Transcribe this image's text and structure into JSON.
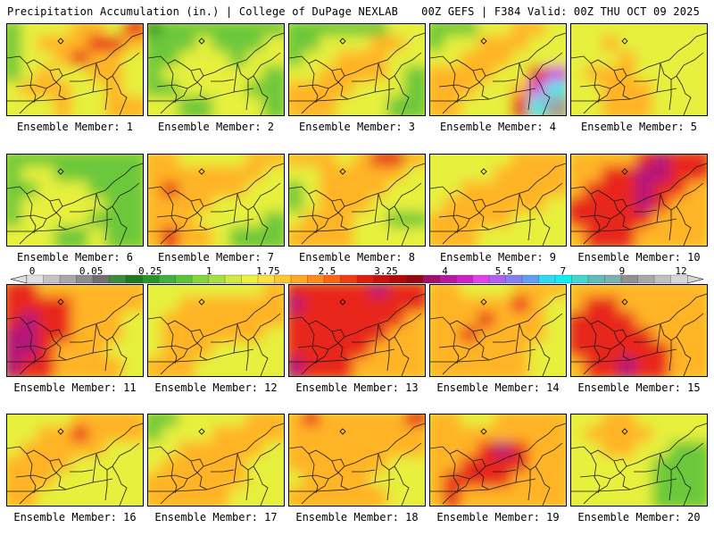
{
  "header": {
    "title": "Precipitation Accumulation (in.) | College of DuPage NEXLAB",
    "run_info": "00Z GEFS | F384 Valid: 00Z THU OCT 09 2025"
  },
  "colorbar": {
    "tick_labels": [
      "0",
      "0.05",
      "0.25",
      "1",
      "1.75",
      "2.5",
      "3.25",
      "4",
      "5.5",
      "7",
      "9",
      "12"
    ],
    "colors": [
      "#e0e0e0",
      "#c4c4c4",
      "#a8a8a8",
      "#8c8c8c",
      "#707070",
      "#3c8c3c",
      "#1e7a1e",
      "#2a962a",
      "#40b040",
      "#5cc43a",
      "#84d63a",
      "#a8e040",
      "#d0ec40",
      "#f2f23c",
      "#ffe03c",
      "#ffc82e",
      "#ffaa20",
      "#ff8c1a",
      "#ff6414",
      "#f03c10",
      "#e01e0e",
      "#c81010",
      "#b00a0a",
      "#960810",
      "#a0106a",
      "#b818a0",
      "#d020c8",
      "#e044e8",
      "#b060f0",
      "#8480f0",
      "#60a0f0",
      "#30d8f0",
      "#10f0f0",
      "#40d8d0",
      "#60bcb8",
      "#7cb0b0",
      "#909090",
      "#a8a8a8",
      "#c0c0c0",
      "#d8d8d8"
    ]
  },
  "panels": [
    {
      "label": "Ensemble Member: 1",
      "pattern": [
        [
          1,
          2,
          2,
          2,
          3,
          3,
          2,
          4
        ],
        [
          1,
          2,
          3,
          3,
          3,
          4,
          4,
          3
        ],
        [
          1,
          2,
          2,
          3,
          4,
          3,
          3,
          2
        ],
        [
          1,
          2,
          3,
          2,
          2,
          3,
          3,
          2
        ],
        [
          2,
          3,
          3,
          3,
          2,
          2,
          3,
          2
        ],
        [
          2,
          2,
          2,
          3,
          2,
          2,
          3,
          3
        ]
      ]
    },
    {
      "label": "Ensemble Member: 2",
      "pattern": [
        [
          0,
          1,
          1,
          1,
          1,
          1,
          1,
          1
        ],
        [
          1,
          1,
          1,
          2,
          1,
          1,
          1,
          2
        ],
        [
          1,
          1,
          2,
          2,
          2,
          1,
          2,
          2
        ],
        [
          1,
          2,
          2,
          2,
          2,
          2,
          2,
          1
        ],
        [
          1,
          1,
          2,
          2,
          2,
          2,
          1,
          1
        ],
        [
          2,
          2,
          1,
          1,
          2,
          2,
          2,
          1
        ]
      ]
    },
    {
      "label": "Ensemble Member: 3",
      "pattern": [
        [
          1,
          1,
          1,
          1,
          1,
          1,
          2,
          2
        ],
        [
          1,
          1,
          2,
          2,
          2,
          3,
          3,
          2
        ],
        [
          1,
          2,
          2,
          3,
          3,
          3,
          2,
          2
        ],
        [
          2,
          2,
          3,
          3,
          3,
          3,
          2,
          1
        ],
        [
          3,
          3,
          3,
          3,
          2,
          2,
          2,
          1
        ],
        [
          3,
          3,
          3,
          2,
          2,
          2,
          1,
          1
        ]
      ]
    },
    {
      "label": "Ensemble Member: 4",
      "pattern": [
        [
          1,
          1,
          1,
          2,
          2,
          3,
          3,
          2
        ],
        [
          1,
          2,
          2,
          3,
          3,
          3,
          2,
          2
        ],
        [
          2,
          2,
          3,
          3,
          3,
          2,
          2,
          2
        ],
        [
          3,
          3,
          3,
          3,
          2,
          2,
          4,
          6
        ],
        [
          3,
          3,
          3,
          2,
          2,
          3,
          6,
          7
        ],
        [
          3,
          3,
          2,
          2,
          2,
          4,
          7,
          8
        ]
      ]
    },
    {
      "label": "Ensemble Member: 5",
      "pattern": [
        [
          2,
          2,
          2,
          2,
          2,
          2,
          2,
          2
        ],
        [
          2,
          2,
          3,
          2,
          2,
          2,
          2,
          2
        ],
        [
          2,
          2,
          2,
          3,
          2,
          2,
          2,
          2
        ],
        [
          2,
          3,
          3,
          3,
          2,
          2,
          2,
          2
        ],
        [
          2,
          2,
          3,
          3,
          3,
          2,
          2,
          2
        ],
        [
          2,
          2,
          3,
          3,
          3,
          2,
          2,
          2
        ]
      ]
    },
    {
      "label": "Ensemble Member: 6",
      "pattern": [
        [
          1,
          1,
          1,
          1,
          1,
          1,
          1,
          1
        ],
        [
          1,
          2,
          2,
          1,
          1,
          1,
          1,
          1
        ],
        [
          1,
          1,
          2,
          2,
          2,
          1,
          1,
          1
        ],
        [
          1,
          2,
          2,
          2,
          2,
          2,
          1,
          1
        ],
        [
          1,
          2,
          2,
          2,
          2,
          1,
          1,
          1
        ],
        [
          2,
          2,
          2,
          1,
          1,
          2,
          1,
          1
        ]
      ]
    },
    {
      "label": "Ensemble Member: 7",
      "pattern": [
        [
          3,
          3,
          2,
          2,
          2,
          2,
          3,
          3
        ],
        [
          3,
          3,
          3,
          3,
          3,
          3,
          3,
          2
        ],
        [
          3,
          4,
          3,
          3,
          3,
          3,
          2,
          2
        ],
        [
          3,
          3,
          3,
          3,
          2,
          2,
          2,
          2
        ],
        [
          3,
          3,
          3,
          2,
          2,
          2,
          2,
          1
        ],
        [
          3,
          4,
          3,
          3,
          2,
          1,
          1,
          1
        ]
      ]
    },
    {
      "label": "Ensemble Member: 8",
      "pattern": [
        [
          3,
          3,
          3,
          2,
          3,
          4,
          4,
          3
        ],
        [
          2,
          2,
          3,
          3,
          3,
          3,
          3,
          2
        ],
        [
          1,
          2,
          3,
          3,
          3,
          3,
          2,
          2
        ],
        [
          1,
          2,
          3,
          3,
          3,
          2,
          2,
          2
        ],
        [
          2,
          3,
          3,
          3,
          2,
          2,
          1,
          1
        ],
        [
          3,
          3,
          3,
          3,
          2,
          2,
          2,
          2
        ]
      ]
    },
    {
      "label": "Ensemble Member: 9",
      "pattern": [
        [
          2,
          2,
          2,
          2,
          2,
          3,
          3,
          3
        ],
        [
          2,
          2,
          2,
          2,
          3,
          3,
          3,
          3
        ],
        [
          2,
          2,
          3,
          3,
          3,
          3,
          3,
          3
        ],
        [
          2,
          3,
          3,
          3,
          3,
          3,
          3,
          2
        ],
        [
          3,
          3,
          3,
          3,
          3,
          2,
          2,
          2
        ],
        [
          3,
          3,
          3,
          2,
          2,
          2,
          2,
          2
        ]
      ]
    },
    {
      "label": "Ensemble Member: 10",
      "pattern": [
        [
          3,
          3,
          3,
          3,
          4,
          5,
          4,
          4
        ],
        [
          3,
          3,
          4,
          4,
          5,
          5,
          4,
          4
        ],
        [
          3,
          4,
          4,
          4,
          5,
          4,
          4,
          3
        ],
        [
          4,
          4,
          4,
          4,
          5,
          4,
          3,
          3
        ],
        [
          4,
          4,
          4,
          4,
          4,
          3,
          3,
          3
        ],
        [
          3,
          4,
          4,
          4,
          3,
          3,
          3,
          3
        ]
      ]
    },
    {
      "label": "Ensemble Member: 11",
      "pattern": [
        [
          4,
          4,
          3,
          3,
          3,
          3,
          3,
          3
        ],
        [
          4,
          4,
          4,
          4,
          3,
          3,
          3,
          3
        ],
        [
          4,
          5,
          4,
          4,
          3,
          3,
          3,
          2
        ],
        [
          5,
          5,
          4,
          4,
          3,
          3,
          3,
          2
        ],
        [
          5,
          5,
          4,
          3,
          3,
          3,
          2,
          2
        ],
        [
          5,
          4,
          4,
          3,
          3,
          3,
          3,
          2
        ]
      ]
    },
    {
      "label": "Ensemble Member: 12",
      "pattern": [
        [
          2,
          2,
          2,
          2,
          2,
          2,
          2,
          3
        ],
        [
          2,
          2,
          3,
          3,
          3,
          3,
          3,
          3
        ],
        [
          2,
          3,
          3,
          3,
          3,
          3,
          3,
          3
        ],
        [
          2,
          3,
          3,
          3,
          3,
          3,
          3,
          2
        ],
        [
          2,
          3,
          3,
          3,
          2,
          2,
          2,
          2
        ],
        [
          3,
          3,
          3,
          2,
          2,
          2,
          2,
          2
        ]
      ]
    },
    {
      "label": "Ensemble Member: 13",
      "pattern": [
        [
          4,
          4,
          4,
          4,
          4,
          5,
          4,
          4
        ],
        [
          5,
          4,
          4,
          4,
          4,
          4,
          4,
          4
        ],
        [
          4,
          4,
          4,
          4,
          4,
          4,
          4,
          3
        ],
        [
          4,
          4,
          4,
          4,
          4,
          4,
          3,
          3
        ],
        [
          4,
          4,
          4,
          4,
          4,
          3,
          3,
          3
        ],
        [
          5,
          4,
          4,
          4,
          3,
          3,
          3,
          3
        ]
      ]
    },
    {
      "label": "Ensemble Member: 14",
      "pattern": [
        [
          3,
          3,
          2,
          2,
          2,
          3,
          3,
          3
        ],
        [
          3,
          3,
          3,
          3,
          3,
          4,
          3,
          2
        ],
        [
          3,
          3,
          3,
          4,
          3,
          3,
          3,
          2
        ],
        [
          3,
          3,
          4,
          3,
          3,
          3,
          3,
          2
        ],
        [
          3,
          3,
          3,
          3,
          3,
          3,
          2,
          2
        ],
        [
          3,
          3,
          3,
          3,
          3,
          3,
          2,
          2
        ]
      ]
    },
    {
      "label": "Ensemble Member: 15",
      "pattern": [
        [
          3,
          3,
          3,
          3,
          3,
          3,
          3,
          3
        ],
        [
          3,
          4,
          4,
          3,
          3,
          3,
          3,
          3
        ],
        [
          4,
          4,
          4,
          4,
          3,
          3,
          3,
          3
        ],
        [
          4,
          4,
          4,
          4,
          4,
          3,
          3,
          3
        ],
        [
          4,
          4,
          4,
          4,
          4,
          4,
          3,
          3
        ],
        [
          3,
          4,
          4,
          5,
          4,
          4,
          3,
          3
        ]
      ]
    },
    {
      "label": "Ensemble Member: 16",
      "pattern": [
        [
          2,
          2,
          2,
          2,
          3,
          3,
          3,
          3
        ],
        [
          2,
          2,
          3,
          3,
          4,
          3,
          3,
          3
        ],
        [
          2,
          3,
          3,
          3,
          3,
          3,
          2,
          2
        ],
        [
          3,
          3,
          3,
          3,
          2,
          2,
          2,
          2
        ],
        [
          3,
          3,
          3,
          2,
          2,
          2,
          2,
          2
        ],
        [
          3,
          3,
          2,
          2,
          2,
          2,
          2,
          2
        ]
      ]
    },
    {
      "label": "Ensemble Member: 17",
      "pattern": [
        [
          1,
          1,
          2,
          2,
          2,
          2,
          3,
          3
        ],
        [
          1,
          2,
          2,
          2,
          3,
          3,
          3,
          3
        ],
        [
          2,
          2,
          3,
          3,
          3,
          3,
          3,
          2
        ],
        [
          2,
          3,
          3,
          3,
          3,
          3,
          2,
          2
        ],
        [
          3,
          3,
          3,
          3,
          3,
          3,
          2,
          2
        ],
        [
          3,
          3,
          3,
          3,
          3,
          2,
          2,
          2
        ]
      ]
    },
    {
      "label": "Ensemble Member: 18",
      "pattern": [
        [
          3,
          4,
          3,
          3,
          3,
          3,
          3,
          4
        ],
        [
          3,
          3,
          3,
          3,
          3,
          3,
          3,
          3
        ],
        [
          3,
          3,
          3,
          3,
          3,
          3,
          3,
          3
        ],
        [
          3,
          3,
          3,
          3,
          3,
          3,
          2,
          2
        ],
        [
          2,
          3,
          3,
          3,
          3,
          2,
          2,
          2
        ],
        [
          3,
          3,
          3,
          3,
          3,
          3,
          2,
          2
        ]
      ]
    },
    {
      "label": "Ensemble Member: 19",
      "pattern": [
        [
          3,
          3,
          2,
          2,
          3,
          3,
          3,
          3
        ],
        [
          3,
          3,
          3,
          3,
          3,
          3,
          3,
          3
        ],
        [
          3,
          3,
          3,
          4,
          5,
          4,
          3,
          3
        ],
        [
          3,
          3,
          4,
          4,
          4,
          4,
          3,
          3
        ],
        [
          3,
          4,
          4,
          4,
          4,
          3,
          3,
          3
        ],
        [
          3,
          4,
          3,
          3,
          3,
          3,
          3,
          3
        ]
      ]
    },
    {
      "label": "Ensemble Member: 20",
      "pattern": [
        [
          2,
          2,
          3,
          3,
          2,
          2,
          2,
          2
        ],
        [
          2,
          3,
          3,
          3,
          3,
          2,
          2,
          2
        ],
        [
          2,
          2,
          3,
          3,
          2,
          2,
          1,
          1
        ],
        [
          2,
          2,
          2,
          2,
          2,
          1,
          1,
          1
        ],
        [
          2,
          2,
          2,
          2,
          2,
          1,
          1,
          1
        ],
        [
          2,
          2,
          2,
          2,
          2,
          1,
          1,
          1
        ]
      ]
    }
  ],
  "palette_levels": [
    "#2a962a",
    "#6cc83a",
    "#e6f03c",
    "#ffb428",
    "#e8281a",
    "#b4187a",
    "#d040e0",
    "#40e8f0",
    "#a0a0a0"
  ]
}
